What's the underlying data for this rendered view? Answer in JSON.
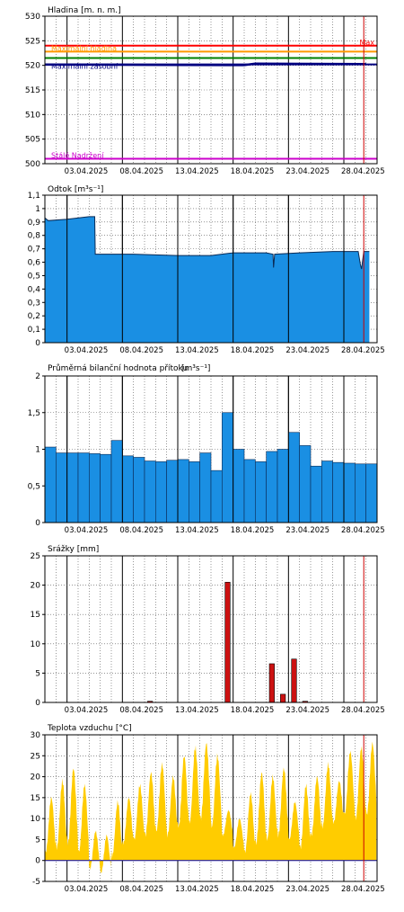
{
  "x_labels": [
    "03.04.2025",
    "08.04.2025",
    "13.04.2025",
    "18.04.2025",
    "23.04.2025",
    "28.04.2025"
  ],
  "chart_data": [
    {
      "type": "line",
      "title": "Hladina [m. n. m.]",
      "xlabel": "",
      "ylabel": "Hladina [m. n. m.]",
      "ylim": [
        500,
        530
      ],
      "y_ticks": [
        500,
        505,
        510,
        515,
        520,
        525,
        530
      ],
      "x_range_days": [
        1,
        31
      ],
      "x_tick_days": [
        3,
        8,
        13,
        18,
        23,
        28
      ],
      "reference_lines": [
        {
          "label": "Max",
          "value": 524.0,
          "color": "#ff0000"
        },
        {
          "label": "Maximální hladina",
          "value": 522.8,
          "color": "#ff9900"
        },
        {
          "label": "",
          "value": 521.5,
          "color": "#008000"
        },
        {
          "label": "Maximální zásobní",
          "value": 520.2,
          "color": "#000080"
        },
        {
          "label": "Stálé Nadržení",
          "value": 501.0,
          "color": "#cc00cc"
        }
      ],
      "series": [
        {
          "name": "",
          "color": "#000080",
          "points": [
            [
              1,
              520.15
            ],
            [
              10,
              520.1
            ],
            [
              19,
              520.05
            ],
            [
              20,
              520.35
            ],
            [
              25,
              520.3
            ],
            [
              30,
              520.25
            ]
          ]
        }
      ],
      "grid": true,
      "current_day": 29.8
    },
    {
      "type": "area",
      "title": "Odtok [m³s⁻¹]",
      "xlabel": "",
      "ylabel": "Odtok [m³s⁻¹]",
      "ylim": [
        0,
        1.1
      ],
      "y_ticks": [
        0,
        0.1,
        0.2,
        0.3,
        0.4,
        0.5,
        0.6,
        0.7,
        0.8,
        0.9,
        1.0,
        1.1
      ],
      "y_tick_labels": [
        "0",
        "0,1",
        "0,2",
        "0,3",
        "0,4",
        "0,5",
        "0,6",
        "0,7",
        "0,8",
        "0,9",
        "1",
        "1,1"
      ],
      "x_range_days": [
        1,
        31
      ],
      "x_tick_days": [
        3,
        8,
        13,
        18,
        23,
        28
      ],
      "series": [
        {
          "name": "",
          "color": "#1a8fe3",
          "points": [
            [
              1,
              0.93
            ],
            [
              1.3,
              0.91
            ],
            [
              3,
              0.92
            ],
            [
              5,
              0.94
            ],
            [
              5.5,
              0.94
            ],
            [
              5.55,
              0.66
            ],
            [
              9,
              0.66
            ],
            [
              13,
              0.65
            ],
            [
              16,
              0.65
            ],
            [
              18,
              0.67
            ],
            [
              21,
              0.67
            ],
            [
              21.6,
              0.66
            ],
            [
              21.65,
              0.56
            ],
            [
              21.75,
              0.66
            ],
            [
              24,
              0.67
            ],
            [
              27,
              0.68
            ],
            [
              29.3,
              0.68
            ],
            [
              29.5,
              0.58
            ],
            [
              29.6,
              0.55
            ],
            [
              29.8,
              0.68
            ],
            [
              30.3,
              0.68
            ]
          ]
        }
      ],
      "grid": true,
      "current_day": 29.8
    },
    {
      "type": "bar",
      "title": "Průměrná bilanční hodnota přítoku",
      "unit": "[m³s⁻¹]",
      "xlabel": "",
      "ylabel": "Průměrná bilanční hodnota přítoku [m³s⁻¹]",
      "ylim": [
        0,
        2
      ],
      "y_ticks": [
        0,
        0.5,
        1,
        1.5,
        2
      ],
      "y_tick_labels": [
        "0",
        "0,5",
        "1",
        "1,5",
        "2"
      ],
      "x_range_days": [
        1,
        31
      ],
      "x_tick_days": [
        3,
        8,
        13,
        18,
        23,
        28
      ],
      "days": [
        1,
        2,
        3,
        4,
        5,
        6,
        7,
        8,
        9,
        10,
        11,
        12,
        13,
        14,
        15,
        16,
        17,
        18,
        19,
        20,
        21,
        22,
        23,
        24,
        25,
        26,
        27,
        28,
        29,
        30
      ],
      "values": [
        1.03,
        0.95,
        0.95,
        0.95,
        0.94,
        0.93,
        1.12,
        0.91,
        0.89,
        0.84,
        0.83,
        0.85,
        0.86,
        0.83,
        0.95,
        0.71,
        1.5,
        1.0,
        0.86,
        0.83,
        0.97,
        1.0,
        1.23,
        1.05,
        0.77,
        0.84,
        0.82,
        0.81,
        0.8,
        0.8
      ],
      "series_color": "#1a8fe3",
      "grid": true
    },
    {
      "type": "bar",
      "title": "Srážky [mm]",
      "xlabel": "",
      "ylabel": "Srážky [mm]",
      "ylim": [
        0,
        25
      ],
      "y_ticks": [
        0,
        5,
        10,
        15,
        20,
        25
      ],
      "x_range_days": [
        1,
        31
      ],
      "x_tick_days": [
        3,
        8,
        13,
        18,
        23,
        28
      ],
      "days": [
        10,
        17,
        21,
        22,
        23,
        24
      ],
      "values": [
        0.2,
        20.5,
        6.6,
        1.4,
        7.4,
        0.2
      ],
      "series_color": "#cc1111",
      "grid": true,
      "current_day": 29.8
    },
    {
      "type": "area",
      "title": "Teplota vzduchu [°C]",
      "xlabel": "",
      "ylabel": "Teplota vzduchu [°C]",
      "ylim": [
        -5,
        30
      ],
      "y_ticks": [
        -5,
        0,
        5,
        10,
        15,
        20,
        25,
        30
      ],
      "x_range_days": [
        1,
        31
      ],
      "x_tick_days": [
        3,
        8,
        13,
        18,
        23,
        28
      ],
      "daily_min": [
        2,
        3,
        4,
        2,
        -2,
        -3,
        1,
        4,
        5,
        6,
        7,
        6,
        8,
        9,
        10,
        8,
        6,
        3,
        2,
        4,
        5,
        6,
        5,
        3,
        6,
        8,
        9,
        11,
        10,
        11
      ],
      "daily_max": [
        15,
        19,
        22,
        18,
        7,
        6,
        14,
        15,
        18,
        21,
        23,
        20,
        25,
        27,
        28,
        25,
        12,
        10,
        16,
        21,
        20,
        22,
        14,
        18,
        20,
        23,
        19,
        26,
        27,
        28
      ],
      "series_color": "#ffcc00",
      "grid": true,
      "current_day": 29.8
    }
  ]
}
